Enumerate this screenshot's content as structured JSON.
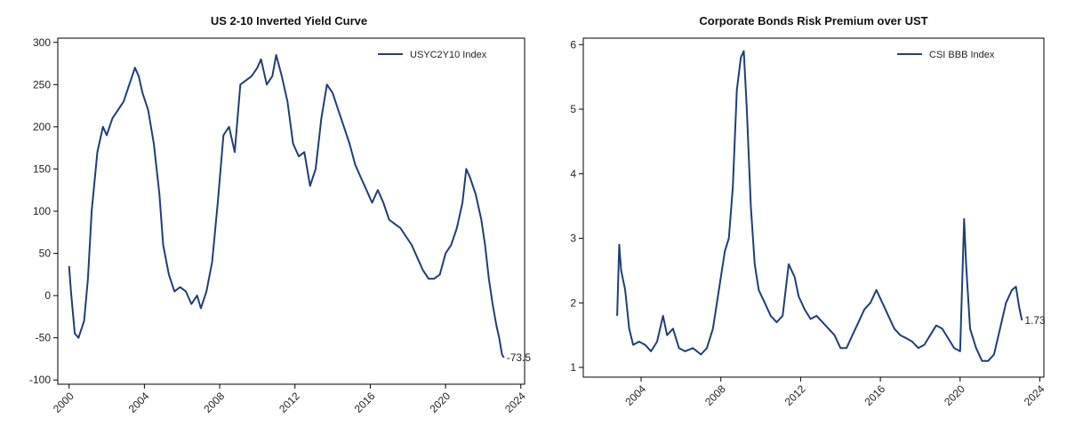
{
  "colors": {
    "series": "#1f3f78",
    "axis": "#000000",
    "text": "#222222"
  },
  "chart_data": [
    {
      "type": "line",
      "title": "US 2-10 Inverted Yield Curve",
      "xlabel": "",
      "ylabel": "",
      "xlim": [
        1999.4,
        2024.2
      ],
      "ylim": [
        -105,
        305
      ],
      "xticks": [
        2000,
        2004,
        2008,
        2012,
        2016,
        2020,
        2024
      ],
      "yticks": [
        -100,
        -50,
        0,
        50,
        100,
        150,
        200,
        250,
        300
      ],
      "grid": false,
      "legend": "top-right",
      "end_label": "-73.5",
      "series": [
        {
          "name": "USYC2Y10 Index",
          "x": [
            2000.0,
            2000.1,
            2000.3,
            2000.5,
            2000.8,
            2001.0,
            2001.2,
            2001.5,
            2001.8,
            2002.0,
            2002.3,
            2002.6,
            2002.9,
            2003.2,
            2003.5,
            2003.7,
            2003.9,
            2004.2,
            2004.5,
            2004.8,
            2005.0,
            2005.3,
            2005.6,
            2005.9,
            2006.2,
            2006.5,
            2006.8,
            2007.0,
            2007.3,
            2007.6,
            2007.9,
            2008.2,
            2008.5,
            2008.8,
            2009.1,
            2009.4,
            2009.7,
            2010.0,
            2010.2,
            2010.5,
            2010.8,
            2011.0,
            2011.3,
            2011.6,
            2011.9,
            2012.2,
            2012.5,
            2012.8,
            2013.1,
            2013.4,
            2013.7,
            2014.0,
            2014.3,
            2014.6,
            2014.9,
            2015.2,
            2015.5,
            2015.8,
            2016.1,
            2016.4,
            2016.7,
            2017.0,
            2017.3,
            2017.6,
            2017.9,
            2018.2,
            2018.5,
            2018.8,
            2019.1,
            2019.4,
            2019.7,
            2020.0,
            2020.3,
            2020.6,
            2020.9,
            2021.1,
            2021.3,
            2021.6,
            2021.9,
            2022.1,
            2022.3,
            2022.5,
            2022.7,
            2022.85,
            2023.0,
            2023.1
          ],
          "y": [
            35,
            5,
            -45,
            -50,
            -30,
            20,
            100,
            170,
            200,
            190,
            210,
            220,
            230,
            250,
            270,
            260,
            240,
            220,
            180,
            120,
            60,
            25,
            5,
            10,
            5,
            -10,
            0,
            -15,
            5,
            40,
            110,
            190,
            200,
            170,
            250,
            255,
            260,
            270,
            280,
            250,
            260,
            285,
            260,
            230,
            180,
            165,
            170,
            130,
            150,
            210,
            250,
            240,
            220,
            200,
            180,
            155,
            140,
            125,
            110,
            125,
            110,
            90,
            85,
            80,
            70,
            60,
            45,
            30,
            20,
            20,
            25,
            50,
            60,
            80,
            110,
            150,
            140,
            120,
            90,
            60,
            20,
            -10,
            -35,
            -50,
            -70,
            -73.5
          ]
        }
      ]
    },
    {
      "type": "line",
      "title": "Corporate Bonds Risk Premium over UST",
      "xlabel": "",
      "ylabel": "",
      "xlim": [
        2001.1,
        2024.2
      ],
      "ylim": [
        0.85,
        6.1
      ],
      "xticks": [
        2004,
        2008,
        2012,
        2016,
        2020,
        2024
      ],
      "yticks": [
        1,
        2,
        3,
        4,
        5,
        6
      ],
      "grid": false,
      "legend": "top-right",
      "end_label": "1.73",
      "series": [
        {
          "name": "CSI BBB Index",
          "x": [
            2002.8,
            2002.9,
            2003.0,
            2003.2,
            2003.4,
            2003.6,
            2003.9,
            2004.2,
            2004.5,
            2004.8,
            2005.1,
            2005.3,
            2005.6,
            2005.9,
            2006.2,
            2006.6,
            2007.0,
            2007.3,
            2007.6,
            2007.9,
            2008.2,
            2008.4,
            2008.6,
            2008.8,
            2009.0,
            2009.15,
            2009.3,
            2009.5,
            2009.7,
            2009.9,
            2010.2,
            2010.5,
            2010.8,
            2011.1,
            2011.4,
            2011.7,
            2011.9,
            2012.2,
            2012.5,
            2012.8,
            2013.1,
            2013.4,
            2013.7,
            2014.0,
            2014.3,
            2014.6,
            2014.9,
            2015.2,
            2015.5,
            2015.8,
            2016.1,
            2016.4,
            2016.7,
            2017.0,
            2017.3,
            2017.6,
            2017.9,
            2018.2,
            2018.5,
            2018.8,
            2019.1,
            2019.4,
            2019.7,
            2020.0,
            2020.2,
            2020.3,
            2020.5,
            2020.8,
            2021.1,
            2021.4,
            2021.7,
            2022.0,
            2022.3,
            2022.6,
            2022.8,
            2022.95,
            2023.1
          ],
          "y": [
            1.8,
            2.9,
            2.5,
            2.2,
            1.6,
            1.35,
            1.4,
            1.35,
            1.25,
            1.4,
            1.8,
            1.5,
            1.6,
            1.3,
            1.25,
            1.3,
            1.2,
            1.3,
            1.6,
            2.2,
            2.8,
            3.0,
            3.8,
            5.3,
            5.8,
            5.9,
            5.0,
            3.5,
            2.6,
            2.2,
            2.0,
            1.8,
            1.7,
            1.8,
            2.6,
            2.4,
            2.1,
            1.9,
            1.75,
            1.8,
            1.7,
            1.6,
            1.5,
            1.3,
            1.3,
            1.5,
            1.7,
            1.9,
            2.0,
            2.2,
            2.0,
            1.8,
            1.6,
            1.5,
            1.45,
            1.4,
            1.3,
            1.35,
            1.5,
            1.65,
            1.6,
            1.45,
            1.3,
            1.25,
            3.3,
            2.6,
            1.6,
            1.3,
            1.1,
            1.1,
            1.2,
            1.6,
            2.0,
            2.2,
            2.25,
            1.95,
            1.73
          ]
        }
      ]
    }
  ]
}
